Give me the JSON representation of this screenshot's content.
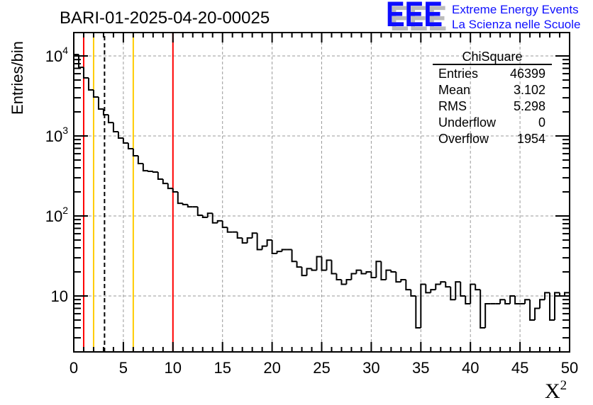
{
  "chart_data": {
    "type": "bar",
    "histogram": true,
    "title": "BARI-01-2025-04-20-00025",
    "xlabel": "X",
    "xlabel_sup": "2",
    "ylabel": "Entries/bin",
    "xlim": [
      0,
      50
    ],
    "ylim": [
      2,
      19600
    ],
    "yscale": "log",
    "grid": true,
    "bin_width": 0.5,
    "xticks": [
      "0",
      "5",
      "10",
      "15",
      "20",
      "25",
      "30",
      "35",
      "40",
      "45",
      "50"
    ],
    "yticks": [
      {
        "value": 10,
        "base": "10",
        "exp": ""
      },
      {
        "value": 100,
        "base": "10",
        "exp": "2"
      },
      {
        "value": 1000,
        "base": "10",
        "exp": "3"
      },
      {
        "value": 10000,
        "base": "10",
        "exp": "4"
      }
    ],
    "values": [
      10420,
      7210,
      5320,
      3760,
      3070,
      2170,
      1840,
      1470,
      1130,
      940,
      816,
      693,
      565,
      452,
      368,
      361,
      354,
      289,
      255,
      221,
      200,
      144,
      139,
      130,
      130,
      102,
      96,
      108,
      82,
      87,
      72,
      63,
      63,
      53,
      46,
      53,
      61,
      38,
      42,
      50,
      34,
      36,
      38,
      38,
      27,
      23,
      18,
      22,
      21,
      31,
      21,
      28,
      19,
      16,
      14,
      16,
      19,
      21,
      19,
      20,
      17,
      27,
      16,
      21,
      20,
      15,
      16,
      12,
      10,
      4,
      14,
      11,
      12,
      14,
      15,
      13,
      9,
      15,
      10,
      8,
      14,
      12,
      4,
      8,
      8,
      8,
      9,
      8,
      10,
      8,
      8,
      9,
      5,
      7,
      9,
      11,
      5,
      11,
      10,
      11
    ],
    "vlines": [
      {
        "x": 1,
        "color": "#ff0000",
        "style": "solid"
      },
      {
        "x": 2,
        "color": "#ffcc00",
        "style": "solid"
      },
      {
        "x": 3.102,
        "color": "#000000",
        "style": "dashed"
      },
      {
        "x": 6,
        "color": "#ffcc00",
        "style": "solid"
      },
      {
        "x": 10,
        "color": "#ff0000",
        "style": "solid"
      }
    ],
    "legend_position": "top-right"
  },
  "stats": {
    "name": "ChiSquare",
    "rows": [
      {
        "label": "Entries",
        "value": "46399"
      },
      {
        "label": "Mean",
        "value": "3.102"
      },
      {
        "label": "RMS",
        "value": "5.298"
      },
      {
        "label": "Underflow",
        "value": "0"
      },
      {
        "label": "Overflow",
        "value": "1954"
      }
    ]
  },
  "logo": {
    "letters": "EEE",
    "line1": "Extreme Energy Events",
    "line2": "La Scienza nelle Scuole",
    "color": "#1010ff"
  }
}
